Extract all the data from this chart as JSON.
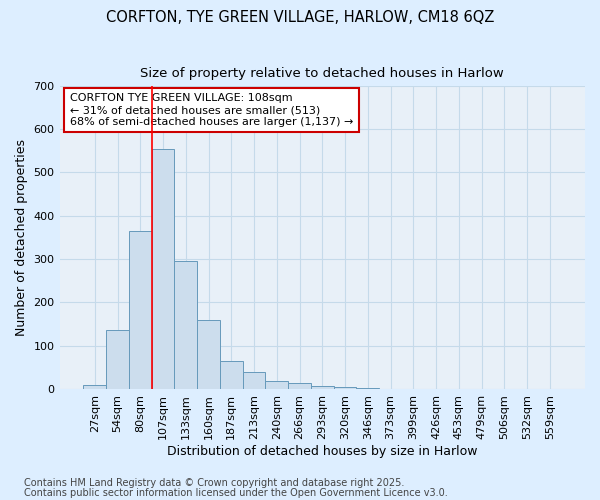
{
  "title_line1": "CORFTON, TYE GREEN VILLAGE, HARLOW, CM18 6QZ",
  "title_line2": "Size of property relative to detached houses in Harlow",
  "xlabel": "Distribution of detached houses by size in Harlow",
  "ylabel": "Number of detached properties",
  "bin_labels": [
    "27sqm",
    "54sqm",
    "80sqm",
    "107sqm",
    "133sqm",
    "160sqm",
    "187sqm",
    "213sqm",
    "240sqm",
    "266sqm",
    "293sqm",
    "320sqm",
    "346sqm",
    "373sqm",
    "399sqm",
    "426sqm",
    "453sqm",
    "479sqm",
    "506sqm",
    "532sqm",
    "559sqm"
  ],
  "bar_heights": [
    8,
    135,
    365,
    555,
    295,
    160,
    65,
    40,
    18,
    13,
    7,
    5,
    3,
    1,
    0,
    0,
    0,
    0,
    0,
    0,
    0
  ],
  "bar_color": "#ccdded",
  "bar_edge_color": "#6699bb",
  "red_line_x": 3,
  "annotation_text": "CORFTON TYE GREEN VILLAGE: 108sqm\n← 31% of detached houses are smaller (513)\n68% of semi-detached houses are larger (1,137) →",
  "annotation_box_color": "white",
  "annotation_box_edge_color": "#cc0000",
  "ylim": [
    0,
    700
  ],
  "yticks": [
    0,
    100,
    200,
    300,
    400,
    500,
    600,
    700
  ],
  "grid_color": "#c5daea",
  "background_color": "#ddeeff",
  "plot_bg_color": "#e8f0f8",
  "footer_line1": "Contains HM Land Registry data © Crown copyright and database right 2025.",
  "footer_line2": "Contains public sector information licensed under the Open Government Licence v3.0.",
  "title_fontsize": 10.5,
  "subtitle_fontsize": 9.5,
  "axis_label_fontsize": 9,
  "tick_fontsize": 8,
  "annotation_fontsize": 8,
  "footer_fontsize": 7
}
